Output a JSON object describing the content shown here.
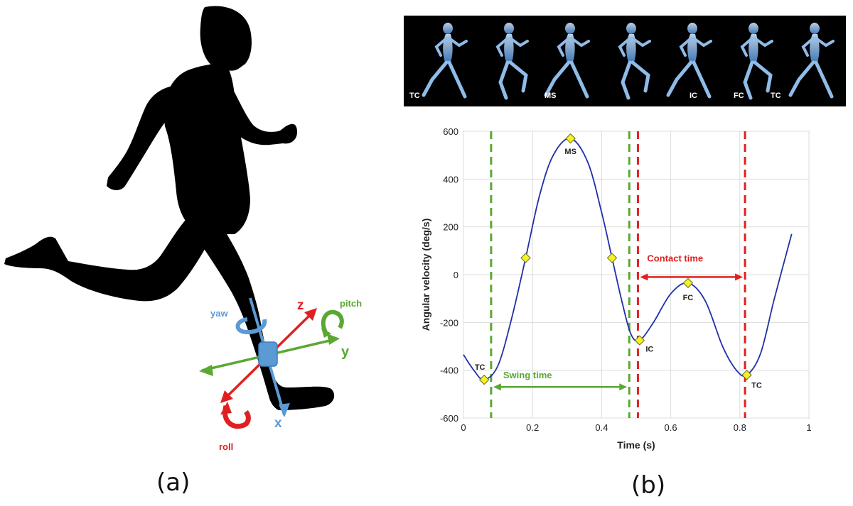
{
  "panel_a": {
    "caption": "(a)",
    "axes": {
      "yaw": "yaw",
      "z": "z",
      "pitch": "pitch",
      "y": "y",
      "x": "x",
      "roll": "roll"
    },
    "colors": {
      "yaw_x": "#5b9bd5",
      "z_roll": "#e02020",
      "pitch_y": "#5aa832",
      "silhouette": "#000000"
    }
  },
  "panel_b": {
    "caption": "(b)",
    "phase_strip": {
      "labels": [
        "TC",
        "MS",
        "IC",
        "FC",
        "TC"
      ],
      "runner_count": 7
    },
    "annotations": {
      "swing_time": "Swing time",
      "contact_time": "Contact time"
    },
    "colors": {
      "curve": "#1f2fa8",
      "swing": "#5aa832",
      "contact": "#e02020",
      "marker": "#f2f227"
    }
  },
  "chart_data": {
    "type": "line",
    "title": "",
    "xlabel": "Time (s)",
    "ylabel": "Angular velocity (deg/s)",
    "xlim": [
      0,
      1
    ],
    "ylim": [
      -600,
      600
    ],
    "xticks": [
      0,
      0.2,
      0.4,
      0.6,
      0.8,
      1
    ],
    "xtick_labels": [
      "0",
      "0.2",
      "0.4",
      "0.6",
      "0.8",
      "1"
    ],
    "yticks": [
      -600,
      -400,
      -200,
      0,
      200,
      400,
      600
    ],
    "ytick_labels": [
      "-600",
      "-400",
      "-200",
      "0",
      "200",
      "400",
      "600"
    ],
    "grid": true,
    "series": [
      {
        "x": [
          0.0,
          0.03,
          0.06,
          0.1,
          0.14,
          0.18,
          0.22,
          0.26,
          0.31,
          0.36,
          0.4,
          0.43,
          0.46,
          0.485,
          0.51,
          0.55,
          0.6,
          0.65,
          0.7,
          0.75,
          0.79,
          0.82,
          0.86,
          0.9,
          0.95
        ],
        "y": [
          -335,
          -400,
          -440,
          -380,
          -180,
          70,
          330,
          500,
          570,
          470,
          260,
          70,
          -120,
          -250,
          -275,
          -200,
          -80,
          -35,
          -110,
          -300,
          -400,
          -420,
          -330,
          -100,
          170
        ]
      }
    ],
    "markers": [
      {
        "label": "TC",
        "x": 0.06,
        "y": -440
      },
      {
        "label": "",
        "x": 0.18,
        "y": 70
      },
      {
        "label": "MS",
        "x": 0.31,
        "y": 570
      },
      {
        "label": "",
        "x": 0.43,
        "y": 70
      },
      {
        "label": "IC",
        "x": 0.51,
        "y": -275
      },
      {
        "label": "FC",
        "x": 0.65,
        "y": -35
      },
      {
        "label": "TC",
        "x": 0.82,
        "y": -420
      }
    ],
    "vlines": [
      {
        "x": 0.08,
        "color": "green"
      },
      {
        "x": 0.48,
        "color": "green"
      },
      {
        "x": 0.505,
        "color": "red"
      },
      {
        "x": 0.815,
        "color": "red"
      }
    ],
    "intervals": [
      {
        "label": "Swing time",
        "x0": 0.08,
        "x1": 0.48,
        "y": -470,
        "color": "green"
      },
      {
        "label": "Contact time",
        "x0": 0.505,
        "x1": 0.815,
        "y": -10,
        "color": "red"
      }
    ]
  }
}
